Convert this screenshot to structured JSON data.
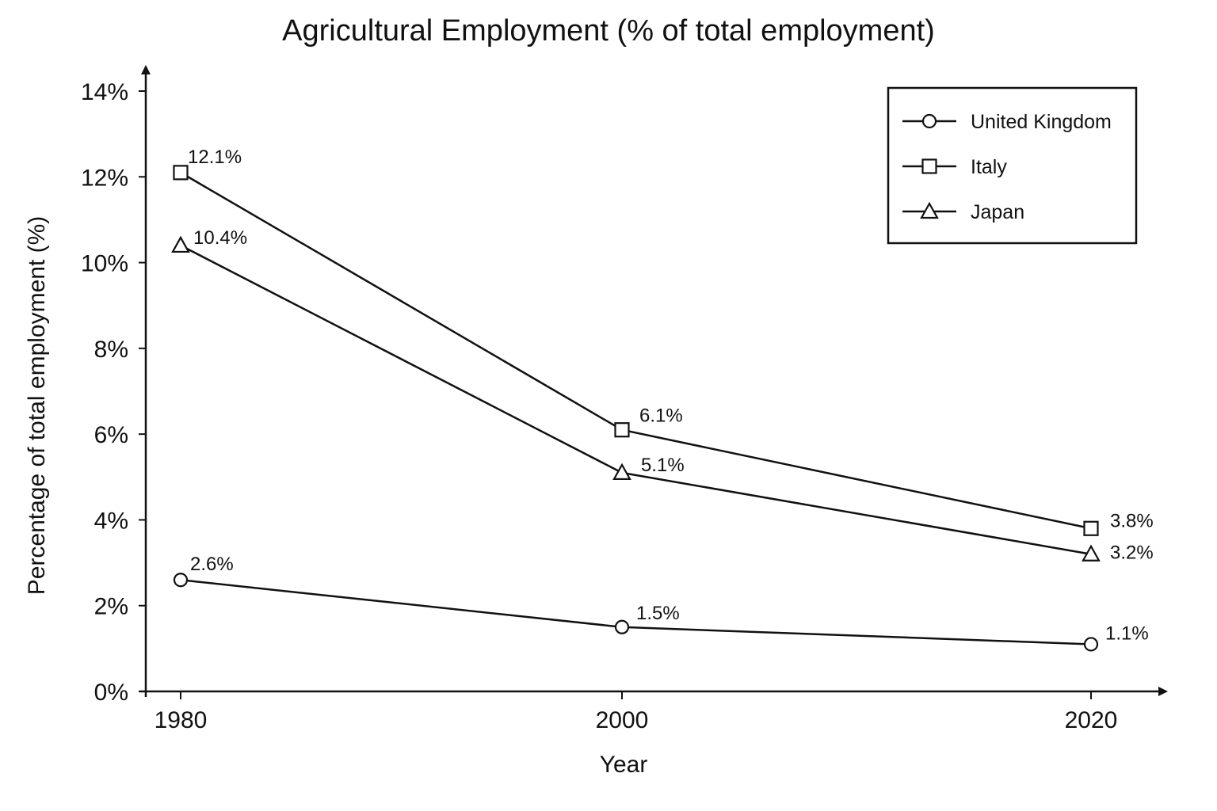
{
  "chart_data": {
    "type": "line",
    "title": "Agricultural Employment (% of total employment)",
    "xlabel": "Year",
    "ylabel": "Percentage of total employment (%)",
    "x": [
      1980,
      2000,
      2020
    ],
    "x_tick_labels": [
      "1980",
      "2000",
      "2020"
    ],
    "ylim": [
      0,
      14
    ],
    "y_ticks": [
      0,
      2,
      4,
      6,
      8,
      10,
      12,
      14
    ],
    "y_tick_labels": [
      "0%",
      "2%",
      "4%",
      "6%",
      "8%",
      "10%",
      "12%",
      "14%"
    ],
    "grid": false,
    "legend_position": "top-right",
    "series": [
      {
        "name": "United Kingdom",
        "marker": "circle",
        "values": [
          2.6,
          1.5,
          1.1
        ],
        "labels": [
          "2.6%",
          "1.5%",
          "1.1%"
        ]
      },
      {
        "name": "Italy",
        "marker": "square",
        "values": [
          12.1,
          6.1,
          3.8
        ],
        "labels": [
          "12.1%",
          "6.1%",
          "3.8%"
        ]
      },
      {
        "name": "Japan",
        "marker": "triangle",
        "values": [
          10.4,
          5.1,
          3.2
        ],
        "labels": [
          "10.4%",
          "5.1%",
          "3.2%"
        ]
      }
    ],
    "colors": {
      "line": "#111111",
      "background": "#ffffff"
    }
  }
}
